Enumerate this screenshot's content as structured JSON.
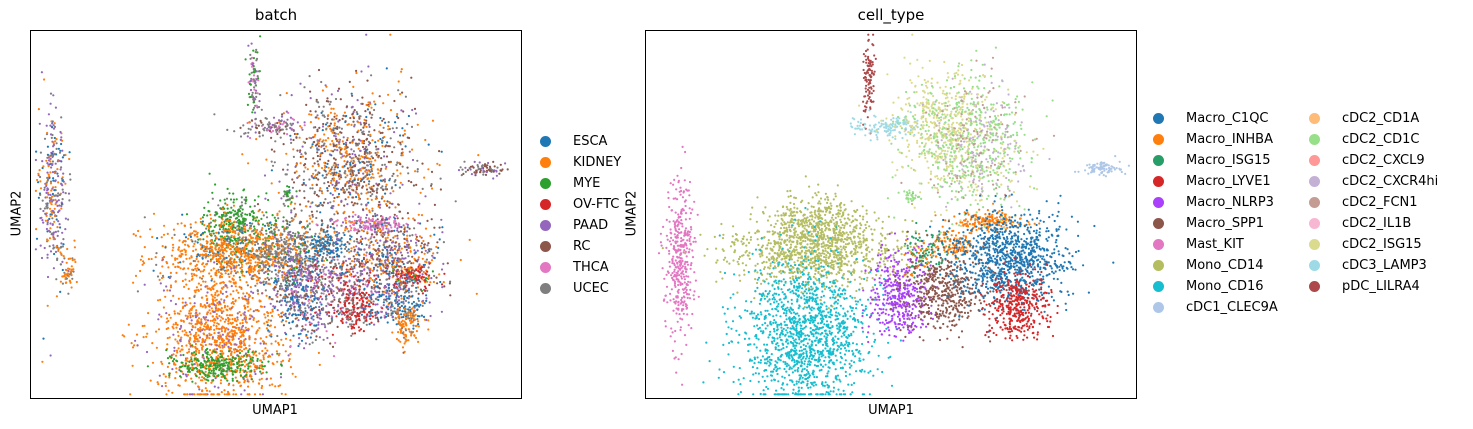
{
  "chart_data": [
    {
      "type": "scatter",
      "title": "batch",
      "xlabel": "UMAP1",
      "ylabel": "UMAP2",
      "legend_position": "right",
      "grid": false,
      "ticks": false,
      "series": [
        {
          "name": "ESCA",
          "color": "#1f77b4"
        },
        {
          "name": "KIDNEY",
          "color": "#ff7f0e"
        },
        {
          "name": "MYE",
          "color": "#2ca02c"
        },
        {
          "name": "OV-FTC",
          "color": "#d62728"
        },
        {
          "name": "PAAD",
          "color": "#9467bd"
        },
        {
          "name": "RC",
          "color": "#8c564b"
        },
        {
          "name": "THCA",
          "color": "#e377c2"
        },
        {
          "name": "UCEC",
          "color": "#7f7f7f"
        }
      ],
      "clusters": [
        {
          "x": 0.045,
          "y": 0.56,
          "sx": 0.014,
          "sy": 0.11,
          "n": 320,
          "mix": [
            [
              "PAAD",
              3
            ],
            [
              "KIDNEY",
              2
            ],
            [
              "UCEC",
              2
            ],
            [
              "ESCA",
              1
            ]
          ]
        },
        {
          "x": 0.075,
          "y": 0.345,
          "sx": 0.01,
          "sy": 0.03,
          "n": 60,
          "mix": [
            [
              "KIDNEY",
              3
            ],
            [
              "UCEC",
              1
            ]
          ]
        },
        {
          "x": 0.455,
          "y": 0.86,
          "sx": 0.006,
          "sy": 0.06,
          "n": 90,
          "mix": [
            [
              "UCEC",
              2
            ],
            [
              "PAAD",
              1
            ],
            [
              "MYE",
              1
            ],
            [
              "THCA",
              1
            ]
          ]
        },
        {
          "x": 0.49,
          "y": 0.74,
          "sx": 0.03,
          "sy": 0.015,
          "n": 110,
          "mix": [
            [
              "UCEC",
              2
            ],
            [
              "RC",
              1
            ],
            [
              "THCA",
              1
            ],
            [
              "PAAD",
              1
            ]
          ]
        },
        {
          "x": 0.65,
          "y": 0.64,
          "sx": 0.07,
          "sy": 0.1,
          "n": 1100,
          "mix": [
            [
              "RC",
              3
            ],
            [
              "KIDNEY",
              3
            ],
            [
              "UCEC",
              2
            ],
            [
              "ESCA",
              1
            ],
            [
              "PAAD",
              1
            ]
          ]
        },
        {
          "x": 0.92,
          "y": 0.625,
          "sx": 0.02,
          "sy": 0.01,
          "n": 80,
          "mix": [
            [
              "RC",
              2
            ],
            [
              "PAAD",
              1
            ],
            [
              "UCEC",
              1
            ]
          ]
        },
        {
          "x": 0.525,
          "y": 0.555,
          "sx": 0.006,
          "sy": 0.015,
          "n": 30,
          "mix": [
            [
              "MYE",
              2
            ],
            [
              "UCEC",
              1
            ]
          ]
        },
        {
          "x": 0.415,
          "y": 0.465,
          "sx": 0.035,
          "sy": 0.045,
          "n": 350,
          "mix": [
            [
              "MYE",
              5
            ],
            [
              "UCEC",
              1
            ]
          ]
        },
        {
          "x": 0.415,
          "y": 0.395,
          "sx": 0.08,
          "sy": 0.045,
          "n": 850,
          "mix": [
            [
              "KIDNEY",
              6
            ],
            [
              "UCEC",
              1
            ],
            [
              "ESCA",
              1
            ]
          ]
        },
        {
          "x": 0.52,
          "y": 0.395,
          "sx": 0.04,
          "sy": 0.05,
          "n": 380,
          "mix": [
            [
              "UCEC",
              4
            ],
            [
              "PAAD",
              1
            ],
            [
              "KIDNEY",
              1
            ],
            [
              "MYE",
              1
            ]
          ]
        },
        {
          "x": 0.39,
          "y": 0.17,
          "sx": 0.065,
          "sy": 0.09,
          "n": 1150,
          "mix": [
            [
              "KIDNEY",
              5
            ],
            [
              "PAAD",
              1
            ]
          ]
        },
        {
          "x": 0.385,
          "y": 0.09,
          "sx": 0.05,
          "sy": 0.02,
          "n": 280,
          "mix": [
            [
              "MYE",
              6
            ],
            [
              "KIDNEY",
              1
            ]
          ]
        },
        {
          "x": 0.55,
          "y": 0.28,
          "sx": 0.03,
          "sy": 0.06,
          "n": 350,
          "mix": [
            [
              "ESCA",
              3
            ],
            [
              "PAAD",
              2
            ],
            [
              "UCEC",
              1
            ],
            [
              "RC",
              1
            ]
          ]
        },
        {
          "x": 0.625,
          "y": 0.295,
          "sx": 0.05,
          "sy": 0.06,
          "n": 420,
          "mix": [
            [
              "UCEC",
              2
            ],
            [
              "PAAD",
              2
            ],
            [
              "RC",
              1
            ],
            [
              "OV-FTC",
              1
            ],
            [
              "THCA",
              1
            ]
          ]
        },
        {
          "x": 0.665,
          "y": 0.25,
          "sx": 0.02,
          "sy": 0.035,
          "n": 180,
          "mix": [
            [
              "OV-FTC",
              4
            ],
            [
              "UCEC",
              1
            ]
          ]
        },
        {
          "x": 0.605,
          "y": 0.42,
          "sx": 0.025,
          "sy": 0.02,
          "n": 140,
          "mix": [
            [
              "ESCA",
              3
            ],
            [
              "UCEC",
              1
            ]
          ]
        },
        {
          "x": 0.7,
          "y": 0.475,
          "sx": 0.035,
          "sy": 0.012,
          "n": 130,
          "mix": [
            [
              "THCA",
              4
            ],
            [
              "PAAD",
              1
            ]
          ]
        },
        {
          "x": 0.73,
          "y": 0.38,
          "sx": 0.055,
          "sy": 0.06,
          "n": 650,
          "mix": [
            [
              "RC",
              2
            ],
            [
              "KIDNEY",
              2
            ],
            [
              "PAAD",
              2
            ],
            [
              "ESCA",
              1
            ],
            [
              "UCEC",
              1
            ]
          ]
        },
        {
          "x": 0.78,
          "y": 0.33,
          "sx": 0.02,
          "sy": 0.02,
          "n": 110,
          "mix": [
            [
              "OV-FTC",
              4
            ],
            [
              "MYE",
              1
            ],
            [
              "KIDNEY",
              1
            ]
          ]
        },
        {
          "x": 0.75,
          "y": 0.26,
          "sx": 0.03,
          "sy": 0.03,
          "n": 180,
          "mix": [
            [
              "ESCA",
              3
            ],
            [
              "UCEC",
              1
            ],
            [
              "PAAD",
              1
            ]
          ]
        },
        {
          "x": 0.765,
          "y": 0.2,
          "sx": 0.014,
          "sy": 0.03,
          "n": 120,
          "mix": [
            [
              "KIDNEY",
              5
            ],
            [
              "UCEC",
              1
            ]
          ]
        }
      ]
    },
    {
      "type": "scatter",
      "title": "cell_type",
      "xlabel": "UMAP1",
      "ylabel": "UMAP2",
      "legend_position": "right",
      "legend_columns": 2,
      "grid": false,
      "ticks": false,
      "series": [
        {
          "name": "Macro_C1QC",
          "color": "#1f77b4"
        },
        {
          "name": "Macro_INHBA",
          "color": "#ff7f0e"
        },
        {
          "name": "Macro_ISG15",
          "color": "#279e68"
        },
        {
          "name": "Macro_LYVE1",
          "color": "#d62728"
        },
        {
          "name": "Macro_NLRP3",
          "color": "#aa40fc"
        },
        {
          "name": "Macro_SPP1",
          "color": "#8c564b"
        },
        {
          "name": "Mast_KIT",
          "color": "#e377c2"
        },
        {
          "name": "Mono_CD14",
          "color": "#b5bd61"
        },
        {
          "name": "Mono_CD16",
          "color": "#17becf"
        },
        {
          "name": "cDC1_CLEC9A",
          "color": "#aec7e8"
        },
        {
          "name": "cDC2_CD1A",
          "color": "#ffbb78"
        },
        {
          "name": "cDC2_CD1C",
          "color": "#98df8a"
        },
        {
          "name": "cDC2_CXCL9",
          "color": "#ff9896"
        },
        {
          "name": "cDC2_CXCR4hi",
          "color": "#c5b0d5"
        },
        {
          "name": "cDC2_FCN1",
          "color": "#c49c94"
        },
        {
          "name": "cDC2_IL1B",
          "color": "#f7b6d2"
        },
        {
          "name": "cDC2_ISG15",
          "color": "#dbdb8d"
        },
        {
          "name": "cDC3_LAMP3",
          "color": "#9edae5"
        },
        {
          "name": "pDC_LILRA4",
          "color": "#ad494a"
        }
      ],
      "clusters": [
        {
          "x": 0.07,
          "y": 0.38,
          "sx": 0.015,
          "sy": 0.11,
          "n": 380,
          "mix": [
            [
              "Mast_KIT",
              1
            ]
          ]
        },
        {
          "x": 0.455,
          "y": 0.86,
          "sx": 0.006,
          "sy": 0.06,
          "n": 100,
          "mix": [
            [
              "pDC_LILRA4",
              1
            ]
          ]
        },
        {
          "x": 0.49,
          "y": 0.74,
          "sx": 0.035,
          "sy": 0.015,
          "n": 130,
          "mix": [
            [
              "cDC3_LAMP3",
              1
            ]
          ]
        },
        {
          "x": 0.6,
          "y": 0.73,
          "sx": 0.045,
          "sy": 0.08,
          "n": 550,
          "mix": [
            [
              "cDC2_ISG15",
              3
            ],
            [
              "cDC2_CD1C",
              1
            ]
          ]
        },
        {
          "x": 0.68,
          "y": 0.68,
          "sx": 0.05,
          "sy": 0.09,
          "n": 700,
          "mix": [
            [
              "cDC2_CD1C",
              3
            ],
            [
              "cDC2_CXCR4hi",
              1
            ],
            [
              "cDC2_FCN1",
              1
            ],
            [
              "cDC2_ISG15",
              1
            ]
          ]
        },
        {
          "x": 0.93,
          "y": 0.625,
          "sx": 0.02,
          "sy": 0.01,
          "n": 80,
          "mix": [
            [
              "cDC1_CLEC9A",
              1
            ]
          ]
        },
        {
          "x": 0.54,
          "y": 0.55,
          "sx": 0.008,
          "sy": 0.01,
          "n": 30,
          "mix": [
            [
              "cDC2_CD1C",
              1
            ]
          ]
        },
        {
          "x": 0.35,
          "y": 0.48,
          "sx": 0.045,
          "sy": 0.04,
          "n": 300,
          "mix": [
            [
              "Mono_CD14",
              1
            ]
          ]
        },
        {
          "x": 0.35,
          "y": 0.4,
          "sx": 0.09,
          "sy": 0.05,
          "n": 1000,
          "mix": [
            [
              "Mono_CD14",
              1
            ]
          ]
        },
        {
          "x": 0.325,
          "y": 0.18,
          "sx": 0.065,
          "sy": 0.1,
          "n": 1350,
          "mix": [
            [
              "Mono_CD16",
              1
            ]
          ]
        },
        {
          "x": 0.52,
          "y": 0.28,
          "sx": 0.03,
          "sy": 0.055,
          "n": 400,
          "mix": [
            [
              "Macro_NLRP3",
              1
            ]
          ]
        },
        {
          "x": 0.61,
          "y": 0.3,
          "sx": 0.045,
          "sy": 0.055,
          "n": 480,
          "mix": [
            [
              "Macro_SPP1",
              1
            ]
          ]
        },
        {
          "x": 0.57,
          "y": 0.4,
          "sx": 0.025,
          "sy": 0.03,
          "n": 120,
          "mix": [
            [
              "Macro_ISG15",
              3
            ],
            [
              "Macro_INHBA",
              1
            ]
          ]
        },
        {
          "x": 0.63,
          "y": 0.42,
          "sx": 0.02,
          "sy": 0.02,
          "n": 80,
          "mix": [
            [
              "Macro_INHBA",
              1
            ]
          ]
        },
        {
          "x": 0.7,
          "y": 0.48,
          "sx": 0.035,
          "sy": 0.013,
          "n": 160,
          "mix": [
            [
              "Macro_INHBA",
              1
            ]
          ]
        },
        {
          "x": 0.74,
          "y": 0.38,
          "sx": 0.06,
          "sy": 0.06,
          "n": 950,
          "mix": [
            [
              "Macro_C1QC",
              1
            ]
          ]
        },
        {
          "x": 0.76,
          "y": 0.25,
          "sx": 0.03,
          "sy": 0.045,
          "n": 380,
          "mix": [
            [
              "Macro_LYVE1",
              1
            ]
          ]
        }
      ]
    }
  ]
}
